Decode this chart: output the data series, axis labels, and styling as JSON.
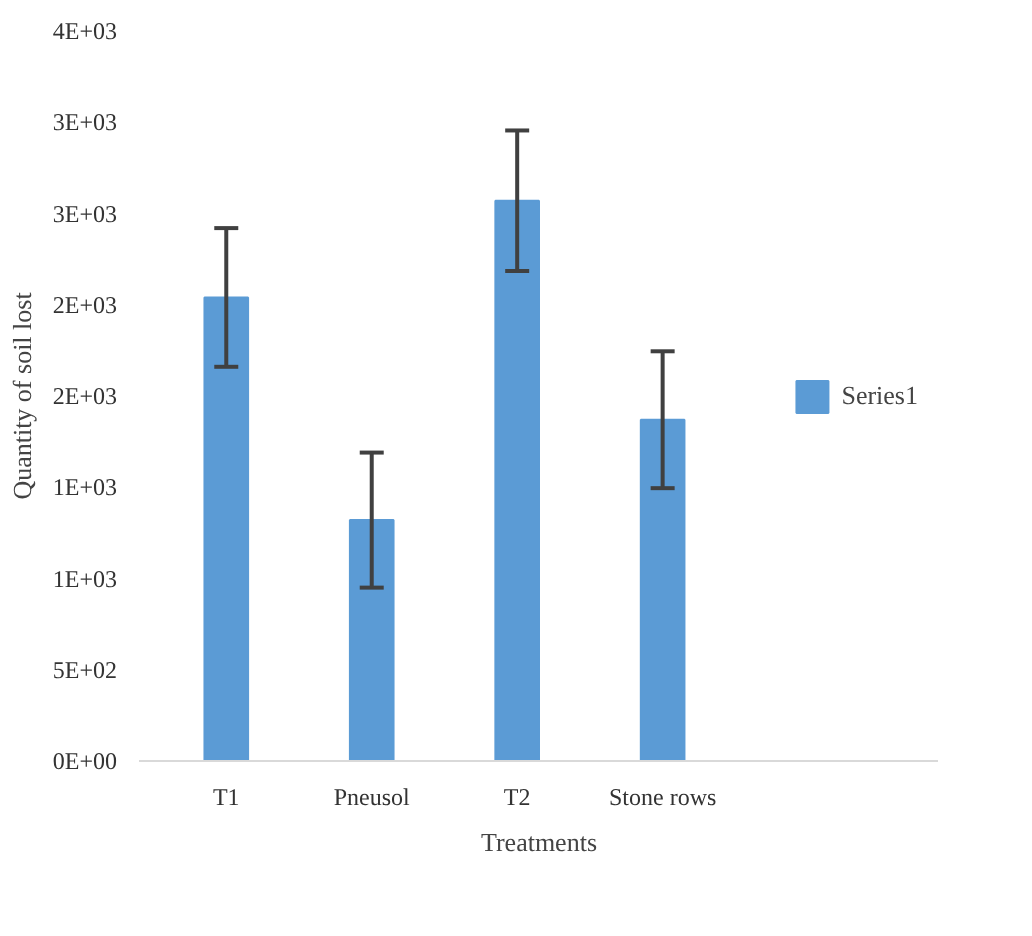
{
  "chart_data": {
    "type": "bar",
    "xlabel": "Treatments",
    "ylabel": "Quantity of soil lost",
    "categories": [
      "T1",
      "Pneusol",
      "T2",
      "Stone rows"
    ],
    "series": [
      {
        "name": "Series1",
        "color": "#5b9bd5",
        "values": [
          2540,
          1320,
          3070,
          1870
        ],
        "errors": [
          380,
          370,
          385,
          375
        ]
      }
    ],
    "ylim": [
      0,
      4000
    ],
    "yticks": [
      {
        "value": 0,
        "label": "0E+00"
      },
      {
        "value": 500,
        "label": "5E+02"
      },
      {
        "value": 1000,
        "label": "1E+03"
      },
      {
        "value": 1500,
        "label": "1E+03"
      },
      {
        "value": 2000,
        "label": "2E+03"
      },
      {
        "value": 2500,
        "label": "2E+03"
      },
      {
        "value": 3000,
        "label": "3E+03"
      },
      {
        "value": 3500,
        "label": "3E+03"
      },
      {
        "value": 4000,
        "label": "4E+03"
      }
    ],
    "grid": false,
    "legend": "right"
  }
}
